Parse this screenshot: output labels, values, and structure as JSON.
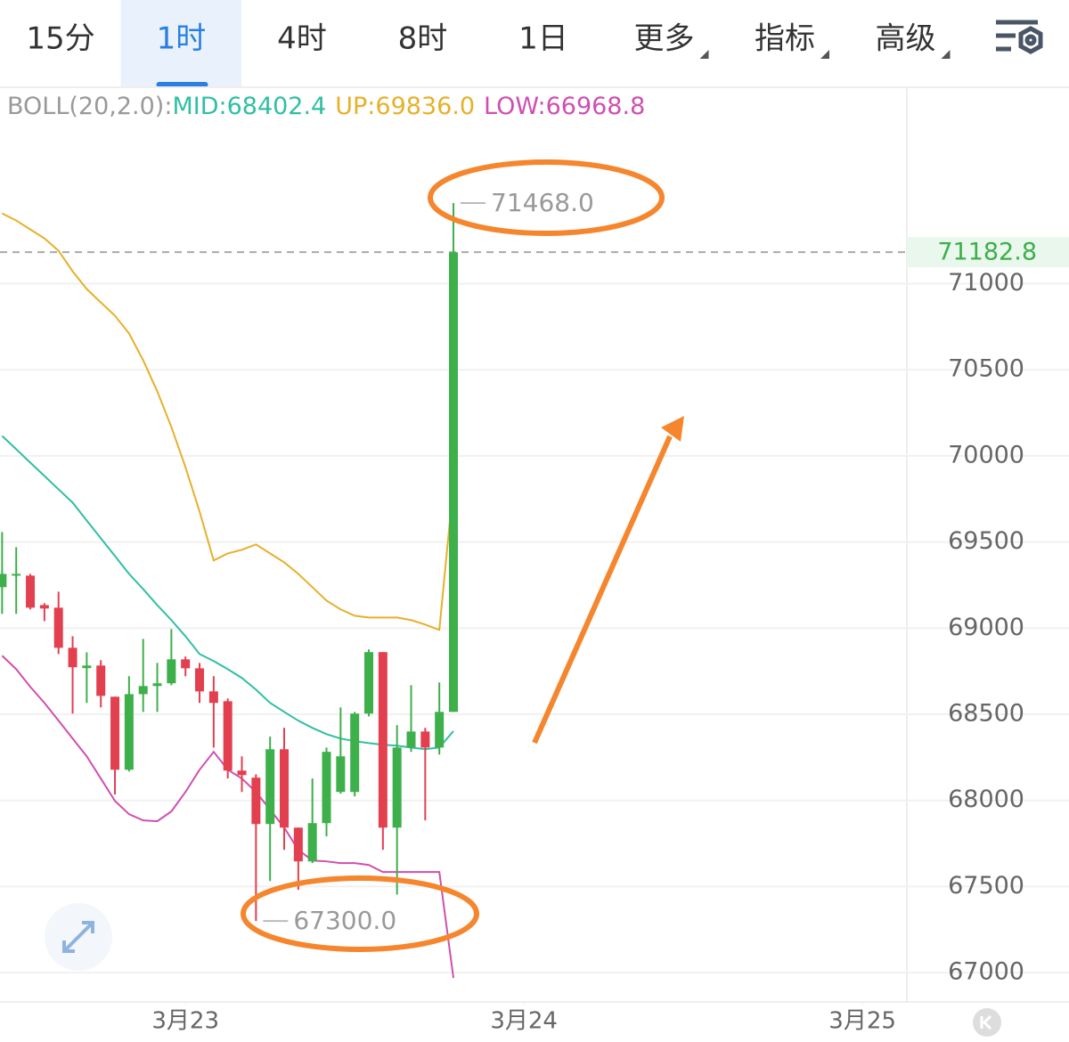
{
  "tabs": {
    "items": [
      "15分",
      "1时",
      "4时",
      "8时",
      "1日",
      "更多",
      "指标",
      "高级"
    ],
    "active": 1,
    "dropdown_from": 5
  },
  "chart_data": {
    "type": "candlestick",
    "indicator": {
      "name": "BOLL(20,2.0):",
      "labels": [
        "MID:68402.4",
        "UP:69836.0",
        "LOW:66968.8"
      ]
    },
    "xticks": [
      {
        "value": 13,
        "label": "3月23"
      },
      {
        "value": 37,
        "label": "3月24"
      },
      {
        "value": 61,
        "label": "3月25"
      }
    ],
    "xlim": [
      -0.15,
      64.15
    ],
    "ylim": [
      66830,
      72130
    ],
    "yticks": [
      67000,
      67500,
      68000,
      68500,
      69000,
      69500,
      70000,
      70500,
      71000
    ],
    "grid": true,
    "up_color": "#3daf4b",
    "down_color": "#e2404f",
    "candles": {
      "open": [
        69238,
        69305,
        69305,
        69134,
        69119,
        68886,
        68768,
        68783,
        68602,
        68178,
        68617,
        68664,
        68680,
        68819,
        68767,
        68633,
        68576,
        68173,
        68132,
        67863,
        68297,
        67842,
        67646,
        67868,
        68049,
        68049,
        68504,
        68861,
        67842,
        68307,
        68400,
        68307,
        68514
      ],
      "high": [
        69558,
        69470,
        69315,
        69145,
        69212,
        68953,
        68860,
        68814,
        68602,
        68721,
        68938,
        68798,
        68995,
        68835,
        68798,
        68721,
        68592,
        68256,
        68152,
        68370,
        68421,
        67842,
        68127,
        68307,
        68540,
        68514,
        68876,
        68861,
        68437,
        68669,
        68421,
        68685,
        71468
      ],
      "low": [
        69083,
        69083,
        69109,
        69041,
        68850,
        68504,
        68566,
        68540,
        68034,
        68168,
        68514,
        68514,
        68669,
        68721,
        68566,
        68307,
        68127,
        68049,
        67300,
        67532,
        67713,
        67481,
        67636,
        67791,
        68039,
        68023,
        68488,
        67713,
        67454,
        68282,
        67884,
        68266,
        68514
      ],
      "close": [
        69315,
        69315,
        69119,
        69114,
        68886,
        68773,
        68783,
        68607,
        68178,
        68617,
        68664,
        68680,
        68819,
        68767,
        68633,
        68566,
        68173,
        68147,
        67863,
        68297,
        67842,
        67646,
        67868,
        68282,
        68256,
        68504,
        68861,
        67842,
        68307,
        68400,
        68307,
        68514,
        71182.8
      ]
    },
    "extreme_labels": {
      "high": "71468.0",
      "low": "67300.0",
      "high_index": 32,
      "low_index": 18
    },
    "series": [
      {
        "name": "MID",
        "color": "#2fbfa3",
        "values": [
          70116,
          70039,
          69961,
          69884,
          69806,
          69729,
          69625,
          69522,
          69419,
          69315,
          69227,
          69134,
          69047,
          68953,
          68850,
          68809,
          68762,
          68711,
          68643,
          68566,
          68514,
          68463,
          68421,
          68385,
          68359,
          68344,
          68333,
          68323,
          68318,
          68307,
          68297,
          68307,
          68402.4
        ]
      },
      {
        "name": "UP",
        "color": "#e6b02a",
        "values": [
          71408,
          71367,
          71315,
          71263,
          71191,
          71072,
          70969,
          70891,
          70814,
          70711,
          70556,
          70375,
          70168,
          69935,
          69677,
          69393,
          69434,
          69455,
          69486,
          69434,
          69382,
          69315,
          69238,
          69160,
          69109,
          69072,
          69062,
          69062,
          69062,
          69047,
          69021,
          68990,
          69836
        ]
      },
      {
        "name": "LOW",
        "color": "#cf4fb0",
        "values": [
          68840,
          68762,
          68659,
          68566,
          68463,
          68359,
          68256,
          68127,
          67997,
          67920,
          67884,
          67879,
          67936,
          68049,
          68178,
          68282,
          68178,
          68127,
          68049,
          67946,
          67842,
          67713,
          67651,
          67646,
          67636,
          67636,
          67625,
          67584,
          67584,
          67584,
          67584,
          67584,
          66968.8
        ]
      }
    ]
  }
}
